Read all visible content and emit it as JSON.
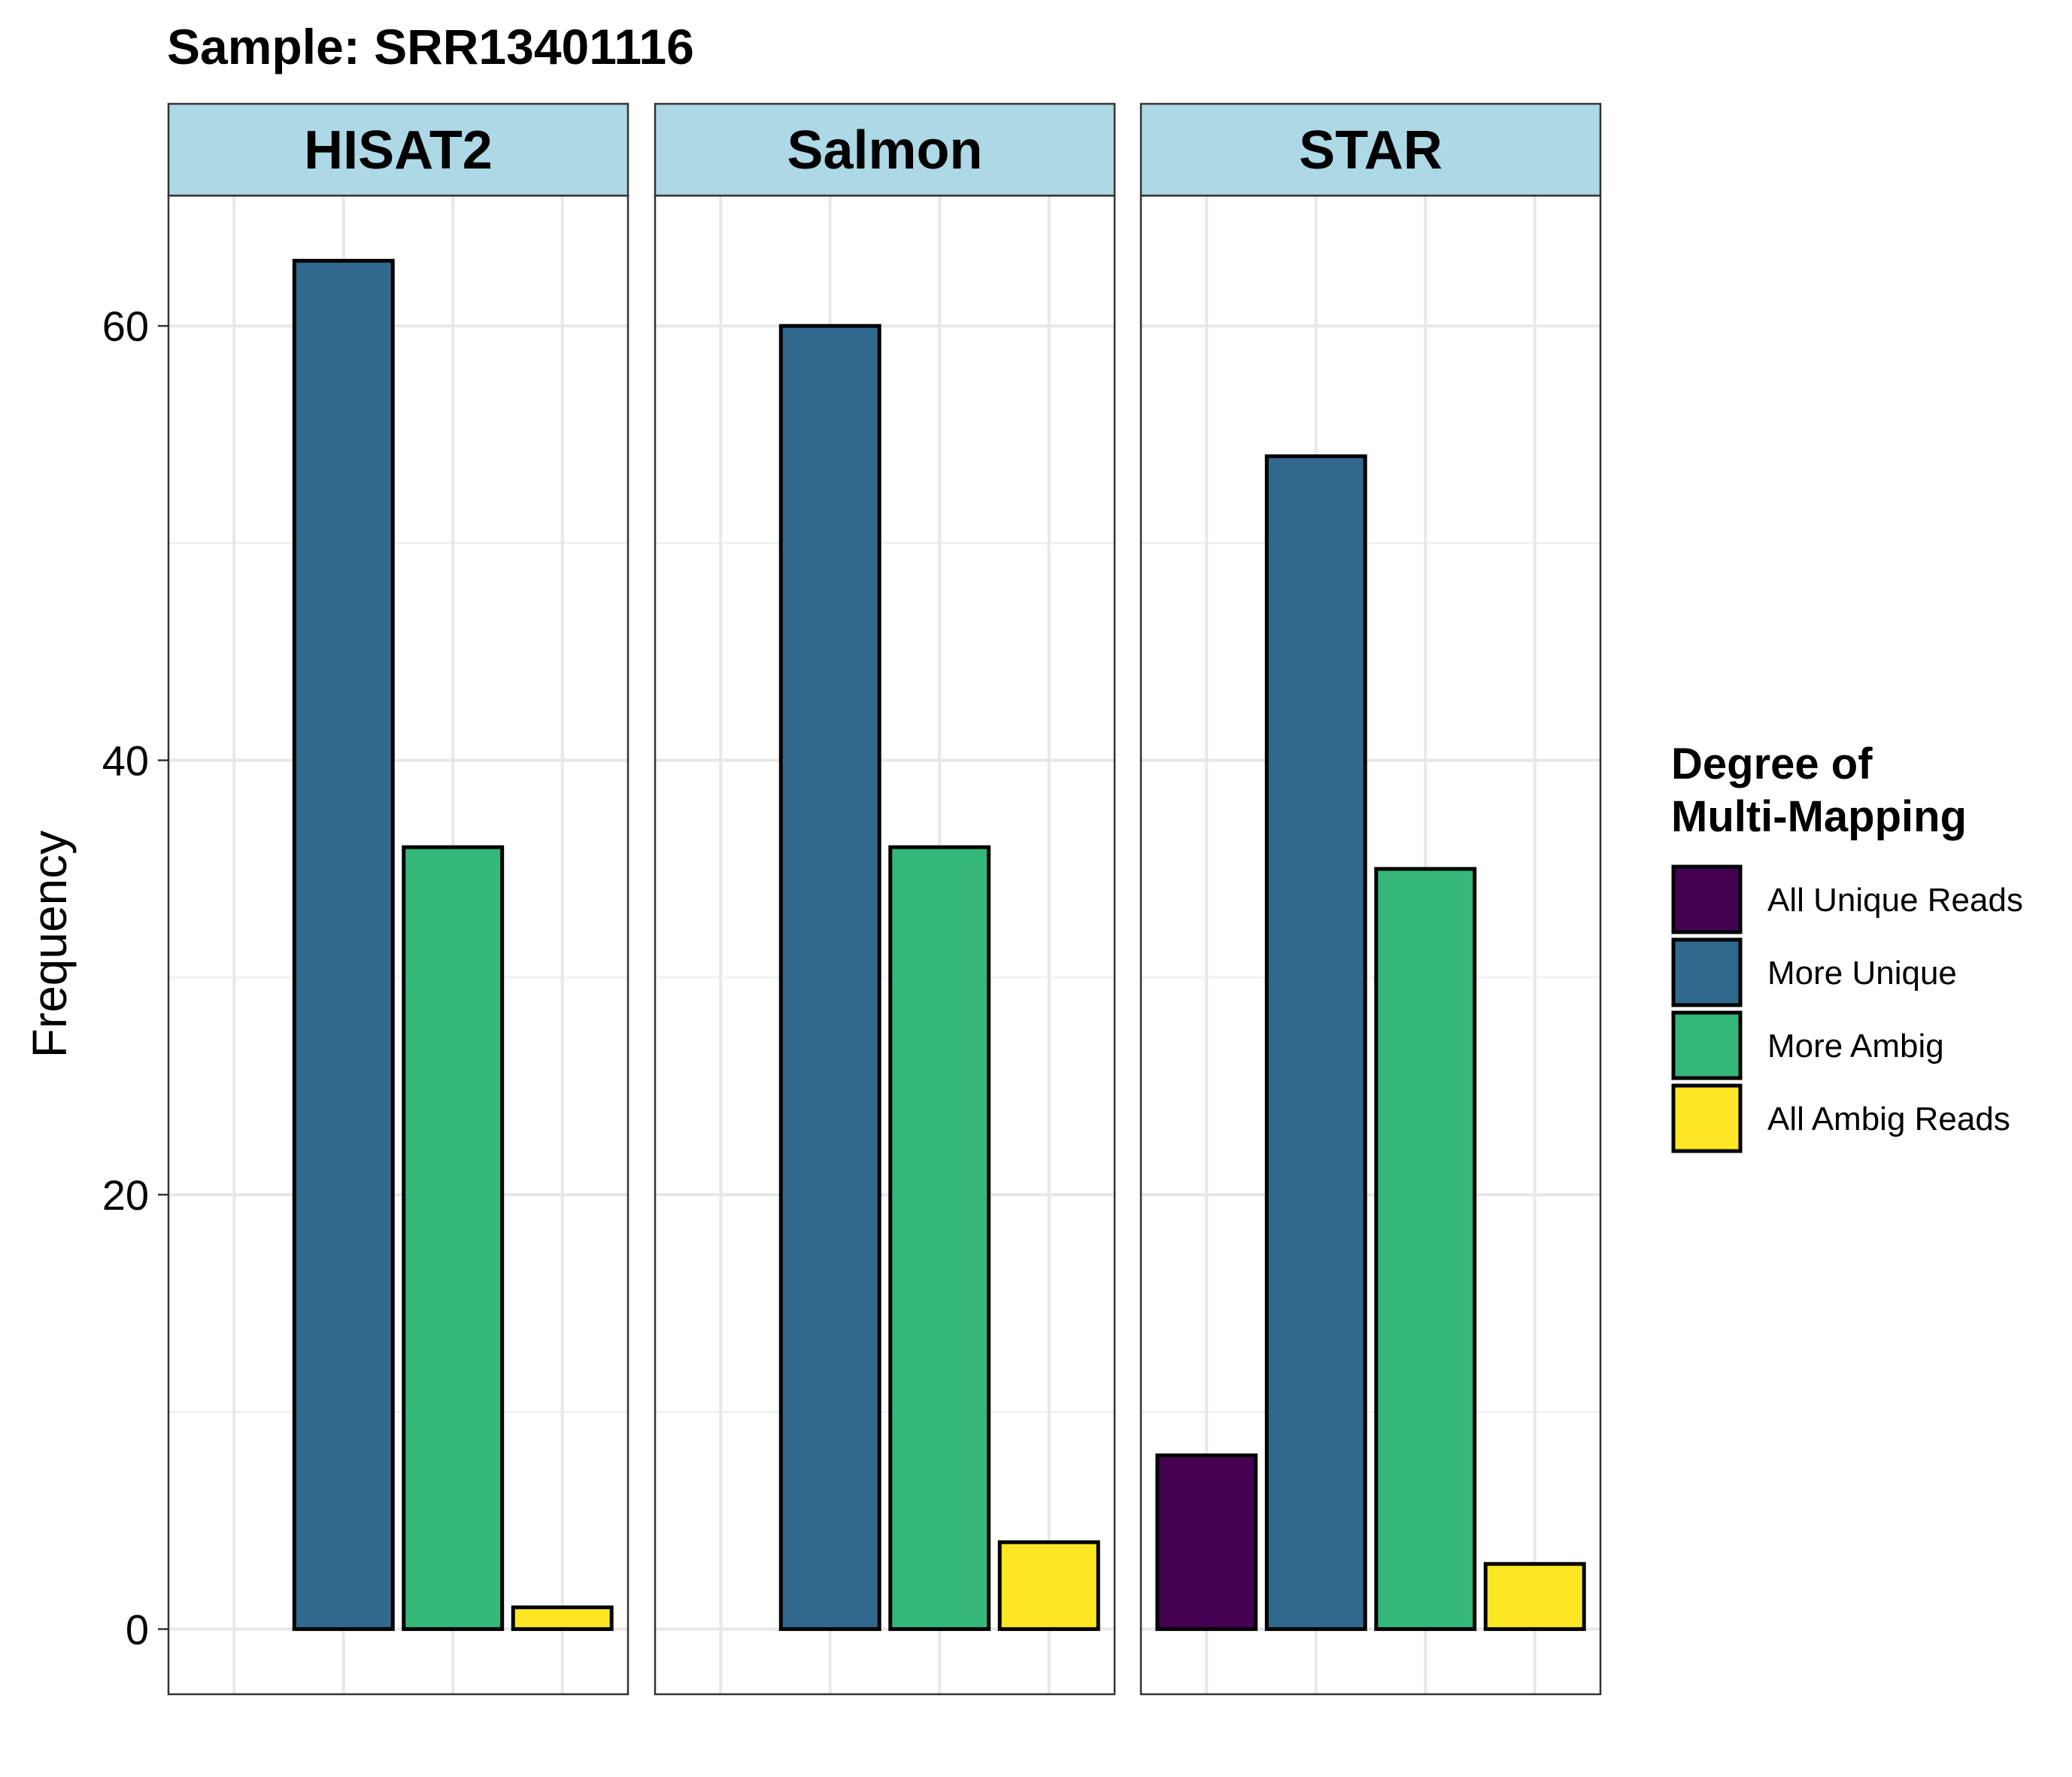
{
  "chart_data": {
    "type": "bar",
    "title": "Sample: SRR13401116",
    "xlabel": "",
    "ylabel": "Frequency",
    "ylim": [
      -3,
      66
    ],
    "yticks": [
      0,
      20,
      40,
      60
    ],
    "grid": true,
    "legend": {
      "title_lines": [
        "Degree of",
        "Multi-Mapping"
      ],
      "placement": "right"
    },
    "categories": [
      "All Unique Reads",
      "More Unique",
      "More Ambig",
      "All Ambig Reads"
    ],
    "colors": [
      "#440154",
      "#31688E",
      "#35B779",
      "#FDE725"
    ],
    "panels": [
      {
        "name": "HISAT2",
        "values": [
          0,
          63,
          36,
          1
        ]
      },
      {
        "name": "Salmon",
        "values": [
          0,
          60,
          36,
          4
        ]
      },
      {
        "name": "STAR",
        "values": [
          8,
          54,
          35,
          3
        ]
      }
    ]
  }
}
